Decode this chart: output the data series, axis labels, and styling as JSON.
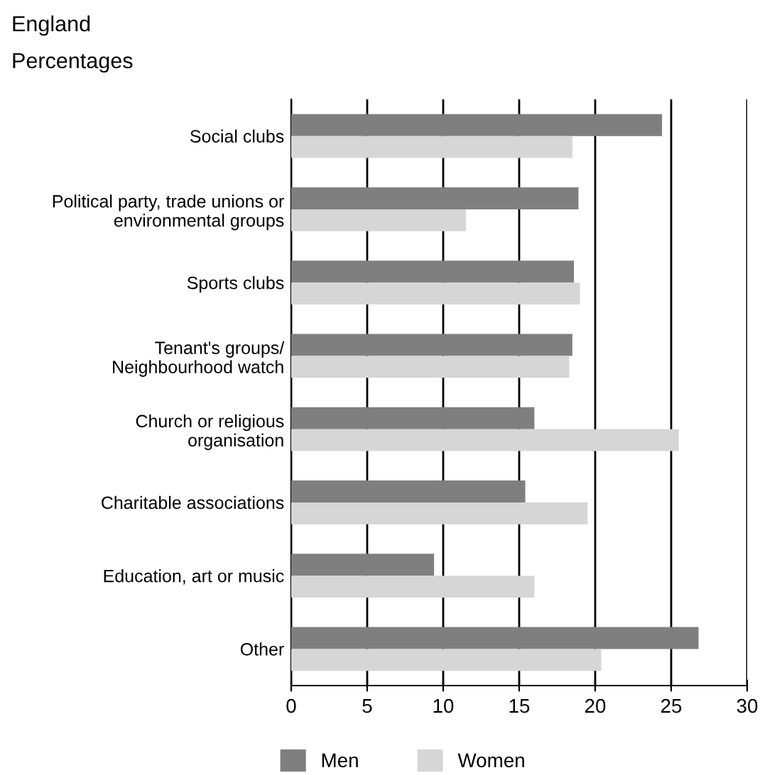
{
  "chart_data": {
    "type": "bar",
    "orientation": "horizontal",
    "title": "England",
    "subtitle": "Percentages",
    "categories": [
      "Social clubs",
      "Political party, trade unions or\nenvironmental groups",
      "Sports clubs",
      "Tenant's groups/\nNeighbourhood watch",
      "Church or religious\norganisation",
      "Charitable associations",
      "Education, art or music",
      "Other"
    ],
    "series": [
      {
        "name": "Men",
        "color": "#7f7f7f",
        "values": [
          24.4,
          18.9,
          18.6,
          18.5,
          16.0,
          15.4,
          9.4,
          26.8
        ]
      },
      {
        "name": "Women",
        "color": "#d6d6d6",
        "values": [
          18.5,
          11.5,
          19.0,
          18.3,
          25.5,
          19.5,
          16.0,
          20.4
        ]
      }
    ],
    "xlim": [
      0,
      30
    ],
    "xticks": [
      0,
      5,
      10,
      15,
      20,
      25,
      30
    ],
    "grid": "x",
    "legend": "bottom"
  }
}
